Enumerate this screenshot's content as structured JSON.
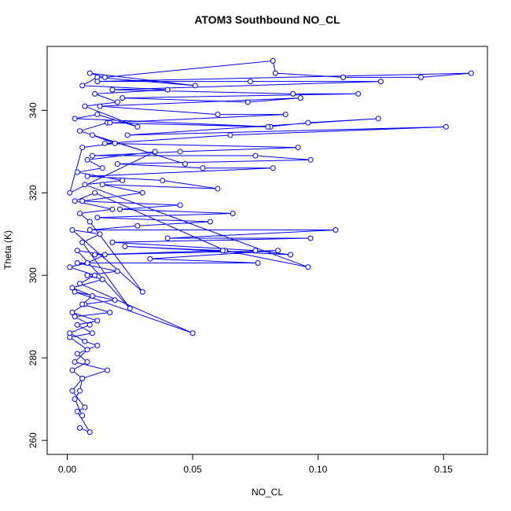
{
  "chart_data": {
    "type": "line",
    "title": "ATOM3 Southbound NO_CL",
    "x_label": "NO_CL",
    "y_label": "Theta (K)",
    "color": "#0000ff",
    "markers": true,
    "xlim": [
      -0.008,
      0.1675
    ],
    "ylim": [
      256.6,
      355.5
    ],
    "xticks": [
      {
        "value": 0,
        "label": "0.00"
      },
      {
        "value": 0.05,
        "label": "0.05"
      },
      {
        "value": 0.1,
        "label": "0.10"
      },
      {
        "value": 0.15,
        "label": "0.15"
      }
    ],
    "yticks": [
      260,
      280,
      300,
      320,
      340
    ],
    "x": [
      0.005,
      0.009,
      0.004,
      0.007,
      0.002,
      0.006,
      0.016,
      0.003,
      0.008,
      0.001,
      0.01,
      0.004,
      0.012,
      0.002,
      0.007,
      0.019,
      0.003,
      0.05,
      0.005,
      0.011,
      0.001,
      0.008,
      0.015,
      0.004,
      0.025,
      0.006,
      0.013,
      0.002,
      0.03,
      0.009,
      0.005,
      0.018,
      0.003,
      0.011,
      0.063,
      0.096,
      0.007,
      0.022,
      0.004,
      0.014,
      0.008,
      0.035,
      0.001,
      0.006,
      0.019,
      0.01,
      0.047,
      0.005,
      0.016,
      0.081,
      0.003,
      0.012,
      0.028,
      0.007,
      0.02,
      0.011,
      0.04,
      0.006,
      0.012,
      0.051,
      0.009,
      0.015,
      0.082,
      0.083,
      0.11,
      0.141,
      0.161,
      0.012,
      0.073,
      0.125,
      0.018,
      0.09,
      0.116,
      0.022,
      0.072,
      0.093,
      0.013,
      0.06,
      0.087,
      0.017,
      0.08,
      0.096,
      0.124,
      0.024,
      0.151,
      0.065,
      0.015,
      0.092,
      0.045,
      0.01,
      0.075,
      0.097,
      0.02,
      0.054,
      0.082,
      0.008,
      0.038,
      0.06,
      0.014,
      0.03,
      0.006,
      0.045,
      0.021,
      0.066,
      0.012,
      0.057,
      0.028,
      0.009,
      0.107,
      0.04,
      0.097,
      0.018,
      0.075,
      0.089,
      0.023,
      0.062,
      0.011,
      0.084,
      0.033,
      0.076,
      0.004,
      0.02,
      0.008,
      0.014,
      0.002,
      0.01,
      0.006,
      0.017,
      0.003,
      0.009,
      0.001,
      0.007,
      0.012,
      0.004,
      0.008,
      0.002,
      0.006,
      0.005,
      0.003,
      0.006
    ],
    "values": [
      263,
      262,
      267,
      268,
      272,
      275,
      277,
      279,
      282,
      285,
      286,
      288,
      289,
      291,
      293,
      294,
      296,
      286,
      298,
      300,
      302,
      303,
      305,
      306,
      292,
      308,
      310,
      311,
      296,
      313,
      315,
      316,
      318,
      320,
      306,
      302,
      322,
      323,
      325,
      326,
      328,
      330,
      320,
      331,
      332,
      334,
      327,
      335,
      337,
      336,
      338,
      339,
      336,
      341,
      342,
      344,
      345,
      346,
      348,
      346,
      349,
      348,
      352,
      349,
      348,
      348,
      349,
      347,
      347,
      347,
      345,
      344,
      344,
      343,
      342,
      343,
      341,
      339,
      339,
      337,
      336,
      337,
      338,
      334,
      336,
      334,
      332,
      331,
      330,
      329,
      329,
      328,
      327,
      326,
      326,
      324,
      323,
      321,
      322,
      320,
      318,
      317,
      316,
      315,
      314,
      313,
      312,
      311,
      311,
      309,
      309,
      308,
      306,
      305,
      307,
      306,
      305,
      306,
      304,
      303,
      303,
      301,
      300,
      299,
      297,
      295,
      293,
      291,
      290,
      288,
      286,
      284,
      283,
      281,
      279,
      277,
      275,
      272,
      270,
      266
    ]
  }
}
